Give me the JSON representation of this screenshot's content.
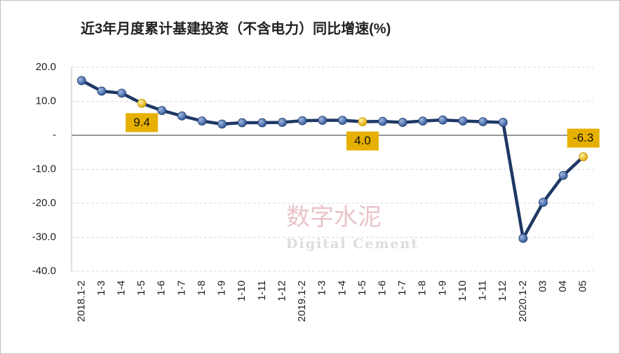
{
  "chart_data": {
    "type": "line",
    "title": "近3年月度累计基建投资（不含电力）同比增速(%)",
    "watermark": "数字水泥",
    "watermark_subtitle": "Digital Cement",
    "categories": [
      "2018.1-2",
      "1-3",
      "1-4",
      "1-5",
      "1-6",
      "1-7",
      "1-8",
      "1-9",
      "1-10",
      "1-11",
      "1-12",
      "2019.1-2",
      "1-3",
      "1-4",
      "1-5",
      "1-6",
      "1-7",
      "1-8",
      "1-9",
      "1-10",
      "1-11",
      "1-12",
      "2020.1-2",
      "03",
      "04",
      "05"
    ],
    "values": [
      16.1,
      13.0,
      12.4,
      9.4,
      7.3,
      5.7,
      4.2,
      3.3,
      3.7,
      3.7,
      3.8,
      4.3,
      4.4,
      4.4,
      4.0,
      4.1,
      3.8,
      4.2,
      4.5,
      4.2,
      4.0,
      3.8,
      -30.3,
      -19.7,
      -11.8,
      -6.3
    ],
    "value_labels": [
      null,
      null,
      null,
      "9.4",
      null,
      null,
      null,
      null,
      null,
      null,
      null,
      null,
      null,
      null,
      "4.0",
      null,
      null,
      null,
      null,
      null,
      null,
      null,
      null,
      null,
      null,
      "-6.3"
    ],
    "color": "#1f3864",
    "highlight_color": "#e6b000",
    "ylim": [
      -40,
      20
    ],
    "yticks": [
      {
        "value": 20,
        "label": "20.0"
      },
      {
        "value": 10,
        "label": "10.0"
      },
      {
        "value": 0,
        "label": "-"
      },
      {
        "value": -10,
        "label": "-10.0"
      },
      {
        "value": -20,
        "label": "-20.0"
      },
      {
        "value": -30,
        "label": "-30.0"
      },
      {
        "value": -40,
        "label": "-40.0"
      }
    ],
    "grid": true
  }
}
